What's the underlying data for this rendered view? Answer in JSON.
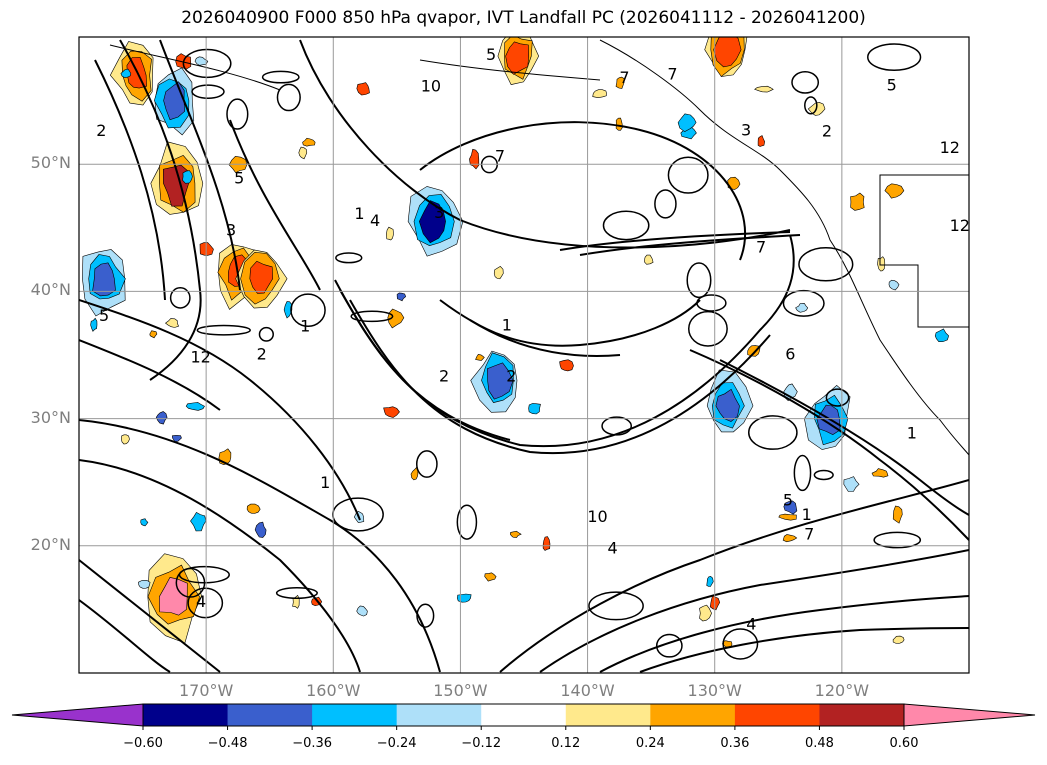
{
  "chart_data": {
    "type": "heatmap",
    "title": "2026040900 F000 850 hPa qvapor, IVT Landfall PC (2026041112 - 2026041200)",
    "map_extent": {
      "lon_min": -180,
      "lon_max": -110,
      "lat_min": 10,
      "lat_max": 60
    },
    "lat_ticks": [
      {
        "value": 20,
        "label": "20°N"
      },
      {
        "value": 30,
        "label": "30°N"
      },
      {
        "value": 40,
        "label": "40°N"
      },
      {
        "value": 50,
        "label": "50°N"
      }
    ],
    "lon_ticks": [
      {
        "value": -170,
        "label": "170°W"
      },
      {
        "value": -160,
        "label": "160°W"
      },
      {
        "value": -150,
        "label": "150°W"
      },
      {
        "value": -140,
        "label": "140°W"
      },
      {
        "value": -130,
        "label": "130°W"
      },
      {
        "value": -120,
        "label": "120°W"
      }
    ],
    "colorbar": {
      "extend": "both",
      "levels": [
        -0.6,
        -0.48,
        -0.36,
        -0.24,
        -0.12,
        0.12,
        0.24,
        0.36,
        0.48,
        0.6
      ],
      "tick_labels": [
        "−0.60",
        "−0.48",
        "−0.36",
        "−0.24",
        "−0.12",
        "0.12",
        "0.24",
        "0.36",
        "0.48",
        "0.60"
      ],
      "colors": [
        "#9932cc",
        "#00008b",
        "#3a5fcd",
        "#00bfff",
        "#aee0f9",
        "#ffffff",
        "#ffe98c",
        "#ffa500",
        "#ff4500",
        "#b22222",
        "#ff88aa"
      ]
    },
    "contour_labels": [
      "1",
      "2",
      "3",
      "4",
      "5",
      "6",
      "7",
      "10",
      "12"
    ],
    "shaded_regions": [
      {
        "lon": -172.3,
        "lat": 48.5,
        "value": 0.55
      },
      {
        "lon": -167.5,
        "lat": 41.5,
        "value": 0.42
      },
      {
        "lon": -165.7,
        "lat": 41.0,
        "value": 0.4
      },
      {
        "lon": -175.5,
        "lat": 57.0,
        "value": 0.38
      },
      {
        "lon": -145.5,
        "lat": 58.5,
        "value": 0.38
      },
      {
        "lon": -129.0,
        "lat": 59.0,
        "value": 0.4
      },
      {
        "lon": -172.5,
        "lat": 16.0,
        "value": 0.62
      },
      {
        "lon": -178.0,
        "lat": 41.0,
        "value": -0.45
      },
      {
        "lon": -172.5,
        "lat": 55.0,
        "value": -0.4
      },
      {
        "lon": -152.0,
        "lat": 45.5,
        "value": -0.5
      },
      {
        "lon": -129.0,
        "lat": 31.0,
        "value": -0.4
      },
      {
        "lon": -121.0,
        "lat": 30.0,
        "value": -0.38
      },
      {
        "lon": -147.0,
        "lat": 33.0,
        "value": -0.45
      }
    ]
  }
}
